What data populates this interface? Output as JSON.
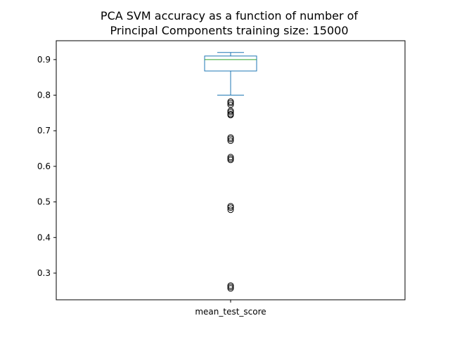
{
  "chart_data": {
    "type": "box",
    "title": [
      "PCA SVM accuracy as a function of number of",
      "Principal Components training size: 15000"
    ],
    "categories": [
      "mean_test_score"
    ],
    "ylim": [
      0.225,
      0.953
    ],
    "yticks": [
      0.3,
      0.4,
      0.5,
      0.6,
      0.7,
      0.8,
      0.9
    ],
    "ytick_labels": [
      "0.3",
      "0.4",
      "0.5",
      "0.6",
      "0.7",
      "0.8",
      "0.9"
    ],
    "grid": false,
    "box": {
      "whisker_low": 0.8,
      "q1": 0.868,
      "median": 0.9,
      "q3": 0.91,
      "whisker_high": 0.92,
      "outliers": [
        0.782,
        0.778,
        0.773,
        0.756,
        0.752,
        0.747,
        0.744,
        0.681,
        0.677,
        0.672,
        0.626,
        0.622,
        0.618,
        0.488,
        0.484,
        0.478,
        0.265,
        0.261,
        0.257
      ]
    },
    "colors": {
      "box": "#1f77b4",
      "median": "#2ca02c",
      "outlier": "#000000"
    }
  }
}
